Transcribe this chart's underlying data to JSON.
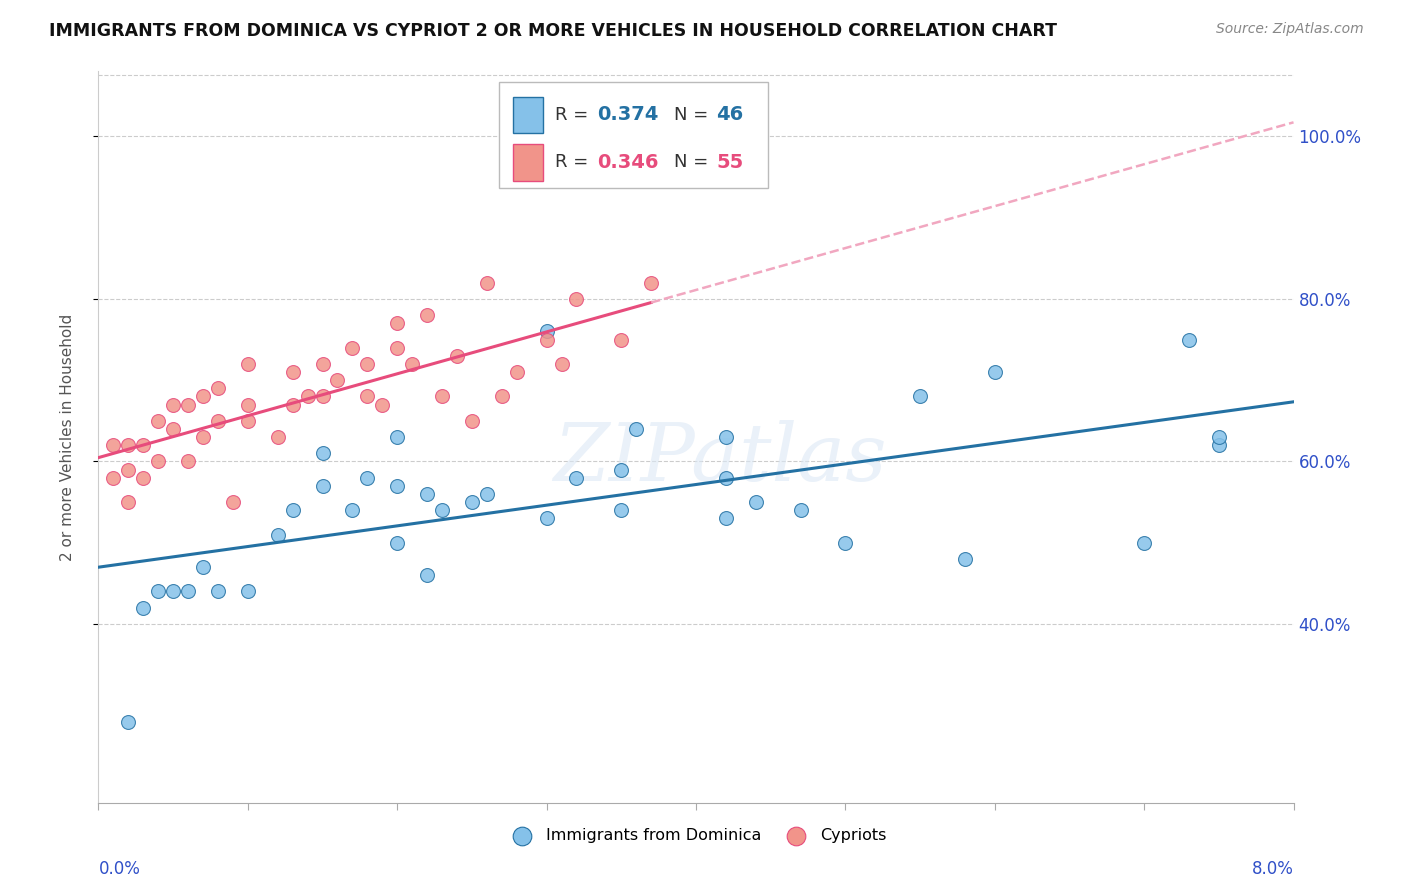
{
  "title": "IMMIGRANTS FROM DOMINICA VS CYPRIOT 2 OR MORE VEHICLES IN HOUSEHOLD CORRELATION CHART",
  "source": "Source: ZipAtlas.com",
  "ylabel": "2 or more Vehicles in Household",
  "series_blue_label": "Immigrants from Dominica",
  "series_pink_label": "Cypriots",
  "color_blue": "#85c1e9",
  "color_pink": "#f1948a",
  "color_trendline_blue": "#2471a3",
  "color_trendline_pink": "#e74c7c",
  "color_trendline_pink_dashed": "#f1a7c0",
  "legend_r_blue": "0.374",
  "legend_n_blue": "46",
  "legend_r_pink": "0.346",
  "legend_n_pink": "55",
  "color_r_blue": "#2471a3",
  "color_n_blue": "#2471a3",
  "color_r_pink": "#e74c7c",
  "color_n_pink": "#e74c7c",
  "watermark": "ZIPatlas",
  "xlim": [
    0.0,
    0.08
  ],
  "ylim": [
    0.18,
    1.08
  ],
  "yticks": [
    0.4,
    0.6,
    0.8,
    1.0
  ],
  "ytick_labels": [
    "40.0%",
    "60.0%",
    "80.0%",
    "100.0%"
  ],
  "blue_x": [
    0.002,
    0.003,
    0.004,
    0.005,
    0.006,
    0.007,
    0.008,
    0.01,
    0.012,
    0.013,
    0.015,
    0.015,
    0.017,
    0.018,
    0.02,
    0.02,
    0.02,
    0.022,
    0.022,
    0.023,
    0.025,
    0.026,
    0.03,
    0.03,
    0.032,
    0.035,
    0.035,
    0.036,
    0.042,
    0.042,
    0.042,
    0.044,
    0.047,
    0.05,
    0.055,
    0.058,
    0.06,
    0.07,
    0.073,
    0.075,
    0.075
  ],
  "blue_y": [
    0.28,
    0.42,
    0.44,
    0.44,
    0.44,
    0.47,
    0.44,
    0.44,
    0.51,
    0.54,
    0.57,
    0.61,
    0.54,
    0.58,
    0.5,
    0.57,
    0.63,
    0.46,
    0.56,
    0.54,
    0.55,
    0.56,
    0.53,
    0.76,
    0.58,
    0.54,
    0.59,
    0.64,
    0.53,
    0.58,
    0.63,
    0.55,
    0.54,
    0.5,
    0.68,
    0.48,
    0.71,
    0.5,
    0.75,
    0.62,
    0.63
  ],
  "pink_x": [
    0.001,
    0.001,
    0.002,
    0.002,
    0.002,
    0.003,
    0.003,
    0.004,
    0.004,
    0.005,
    0.005,
    0.006,
    0.006,
    0.007,
    0.007,
    0.008,
    0.008,
    0.009,
    0.01,
    0.01,
    0.01,
    0.012,
    0.013,
    0.013,
    0.014,
    0.015,
    0.015,
    0.016,
    0.017,
    0.018,
    0.018,
    0.019,
    0.02,
    0.02,
    0.021,
    0.022,
    0.023,
    0.024,
    0.025,
    0.026,
    0.027,
    0.028,
    0.03,
    0.031,
    0.032,
    0.035,
    0.037
  ],
  "pink_y": [
    0.58,
    0.62,
    0.55,
    0.59,
    0.62,
    0.58,
    0.62,
    0.6,
    0.65,
    0.64,
    0.67,
    0.6,
    0.67,
    0.63,
    0.68,
    0.65,
    0.69,
    0.55,
    0.65,
    0.67,
    0.72,
    0.63,
    0.67,
    0.71,
    0.68,
    0.68,
    0.72,
    0.7,
    0.74,
    0.68,
    0.72,
    0.67,
    0.74,
    0.77,
    0.72,
    0.78,
    0.68,
    0.73,
    0.65,
    0.82,
    0.68,
    0.71,
    0.75,
    0.72,
    0.8,
    0.75,
    0.82
  ],
  "figsize": [
    14.06,
    8.92
  ],
  "dpi": 100
}
